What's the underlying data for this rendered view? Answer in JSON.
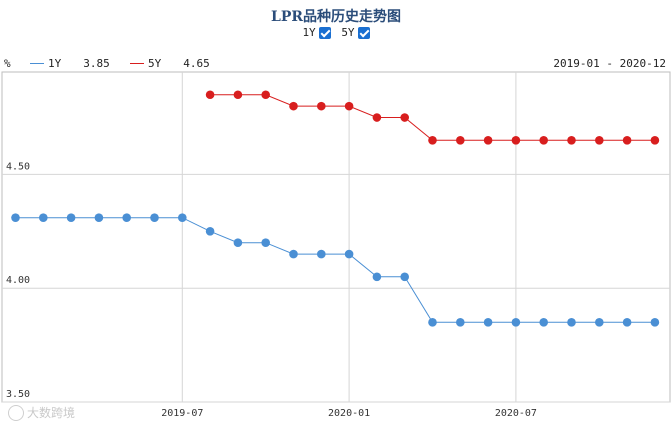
{
  "chart_data": {
    "type": "line",
    "title": "LPR品种历史走势图",
    "unit_label": "%",
    "date_range": "2019-01 - 2020-12",
    "toggles": [
      {
        "label": "1Y",
        "checked": true
      },
      {
        "label": "5Y",
        "checked": true
      }
    ],
    "series": [
      {
        "name": "1Y",
        "latest": "3.85",
        "color": "#4a8fd4",
        "values": [
          4.31,
          4.31,
          4.31,
          4.31,
          4.31,
          4.31,
          4.31,
          4.25,
          4.2,
          4.2,
          4.15,
          4.15,
          4.15,
          4.05,
          4.05,
          3.85,
          3.85,
          3.85,
          3.85,
          3.85,
          3.85,
          3.85,
          3.85,
          3.85
        ]
      },
      {
        "name": "5Y",
        "latest": "4.65",
        "color": "#d81e1e",
        "values": [
          null,
          null,
          null,
          null,
          null,
          null,
          null,
          4.85,
          4.85,
          4.85,
          4.8,
          4.8,
          4.8,
          4.75,
          4.75,
          4.65,
          4.65,
          4.65,
          4.65,
          4.65,
          4.65,
          4.65,
          4.65,
          4.65
        ]
      }
    ],
    "x_months": [
      "2019-01",
      "2019-02",
      "2019-03",
      "2019-04",
      "2019-05",
      "2019-06",
      "2019-07",
      "2019-08",
      "2019-09",
      "2019-10",
      "2019-11",
      "2019-12",
      "2020-01",
      "2020-02",
      "2020-03",
      "2020-04",
      "2020-05",
      "2020-06",
      "2020-07",
      "2020-08",
      "2020-09",
      "2020-10",
      "2020-11",
      "2020-12"
    ],
    "x_tick_labels": [
      {
        "index": 6,
        "label": "2019-07"
      },
      {
        "index": 12,
        "label": "2020-01"
      },
      {
        "index": 18,
        "label": "2020-07"
      }
    ],
    "y_tick_labels": [
      {
        "value": 3.5,
        "label": "3.50"
      },
      {
        "value": 4.0,
        "label": "4.00"
      },
      {
        "value": 4.5,
        "label": "4.50"
      }
    ],
    "ylim": [
      3.5,
      4.95
    ],
    "grid": true
  },
  "watermark": {
    "text": "大数跨境"
  }
}
